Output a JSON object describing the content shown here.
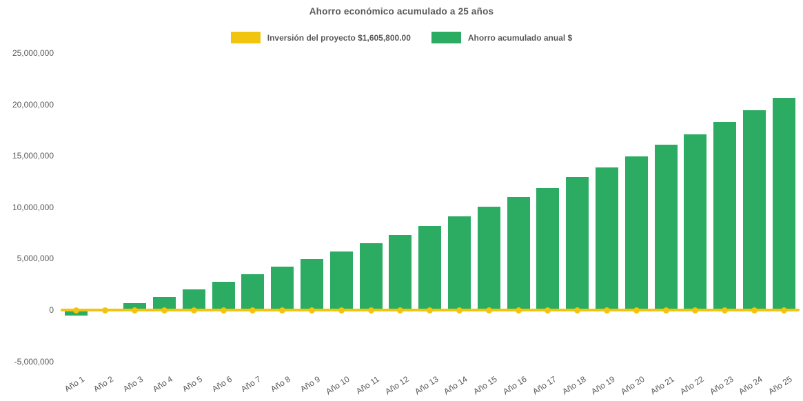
{
  "title": "Ahorro económico acumulado a 25 años",
  "legend": {
    "items": [
      {
        "label": "Inversión del proyecto $1,605,800.00",
        "color": "#F1C40F",
        "series_type": "line"
      },
      {
        "label": "Ahorro acumulado anual $",
        "color": "#2BAC62",
        "series_type": "bar"
      }
    ]
  },
  "colors": {
    "bar_green": "#2BAC62",
    "line_yellow": "#F1C40F",
    "text_gray": "#595959",
    "background": "#ffffff"
  },
  "chart_data": {
    "type": "bar",
    "title": "Ahorro económico acumulado a 25 años",
    "categories": [
      "Año 1",
      "Año 2",
      "Año 3",
      "Año 4",
      "Año 5",
      "Año 6",
      "Año 7",
      "Año 8",
      "Año 9",
      "Año 10",
      "Año 11",
      "Año 12",
      "Año 13",
      "Año 14",
      "Año 15",
      "Año 16",
      "Año 17",
      "Año 18",
      "Año 19",
      "Año 20",
      "Año 21",
      "Año 22",
      "Año 23",
      "Año 24",
      "Año 25"
    ],
    "series": [
      {
        "name": "Inversión del proyecto $1,605,800.00",
        "type": "line",
        "color": "#F1C40F",
        "marker": "circle",
        "constant_value": 0
      },
      {
        "name": "Ahorro acumulado anual $",
        "type": "bar",
        "color": "#2BAC62",
        "values": [
          -550000,
          0,
          650000,
          1300000,
          2000000,
          2730000,
          3510000,
          4250000,
          4940000,
          5720000,
          6520000,
          7330000,
          8180000,
          9120000,
          10040000,
          10980000,
          11870000,
          12920000,
          13880000,
          14950000,
          16060000,
          17090000,
          18300000,
          19450000,
          20660000
        ]
      }
    ],
    "xlabel": "",
    "ylabel": "",
    "ylim": [
      -5000000,
      25000000
    ],
    "yticks": [
      {
        "value": 25000000,
        "label": "25,000,000"
      },
      {
        "value": 20000000,
        "label": "20,000,000"
      },
      {
        "value": 15000000,
        "label": "15,000,000"
      },
      {
        "value": 10000000,
        "label": "10,000,000"
      },
      {
        "value": 5000000,
        "label": "5,000,000"
      },
      {
        "value": 0,
        "label": "0"
      },
      {
        "value": -5000000,
        "label": "-5,000,000"
      }
    ],
    "grid": false,
    "legend_position": "top",
    "x_tick_rotation_deg": 33
  }
}
